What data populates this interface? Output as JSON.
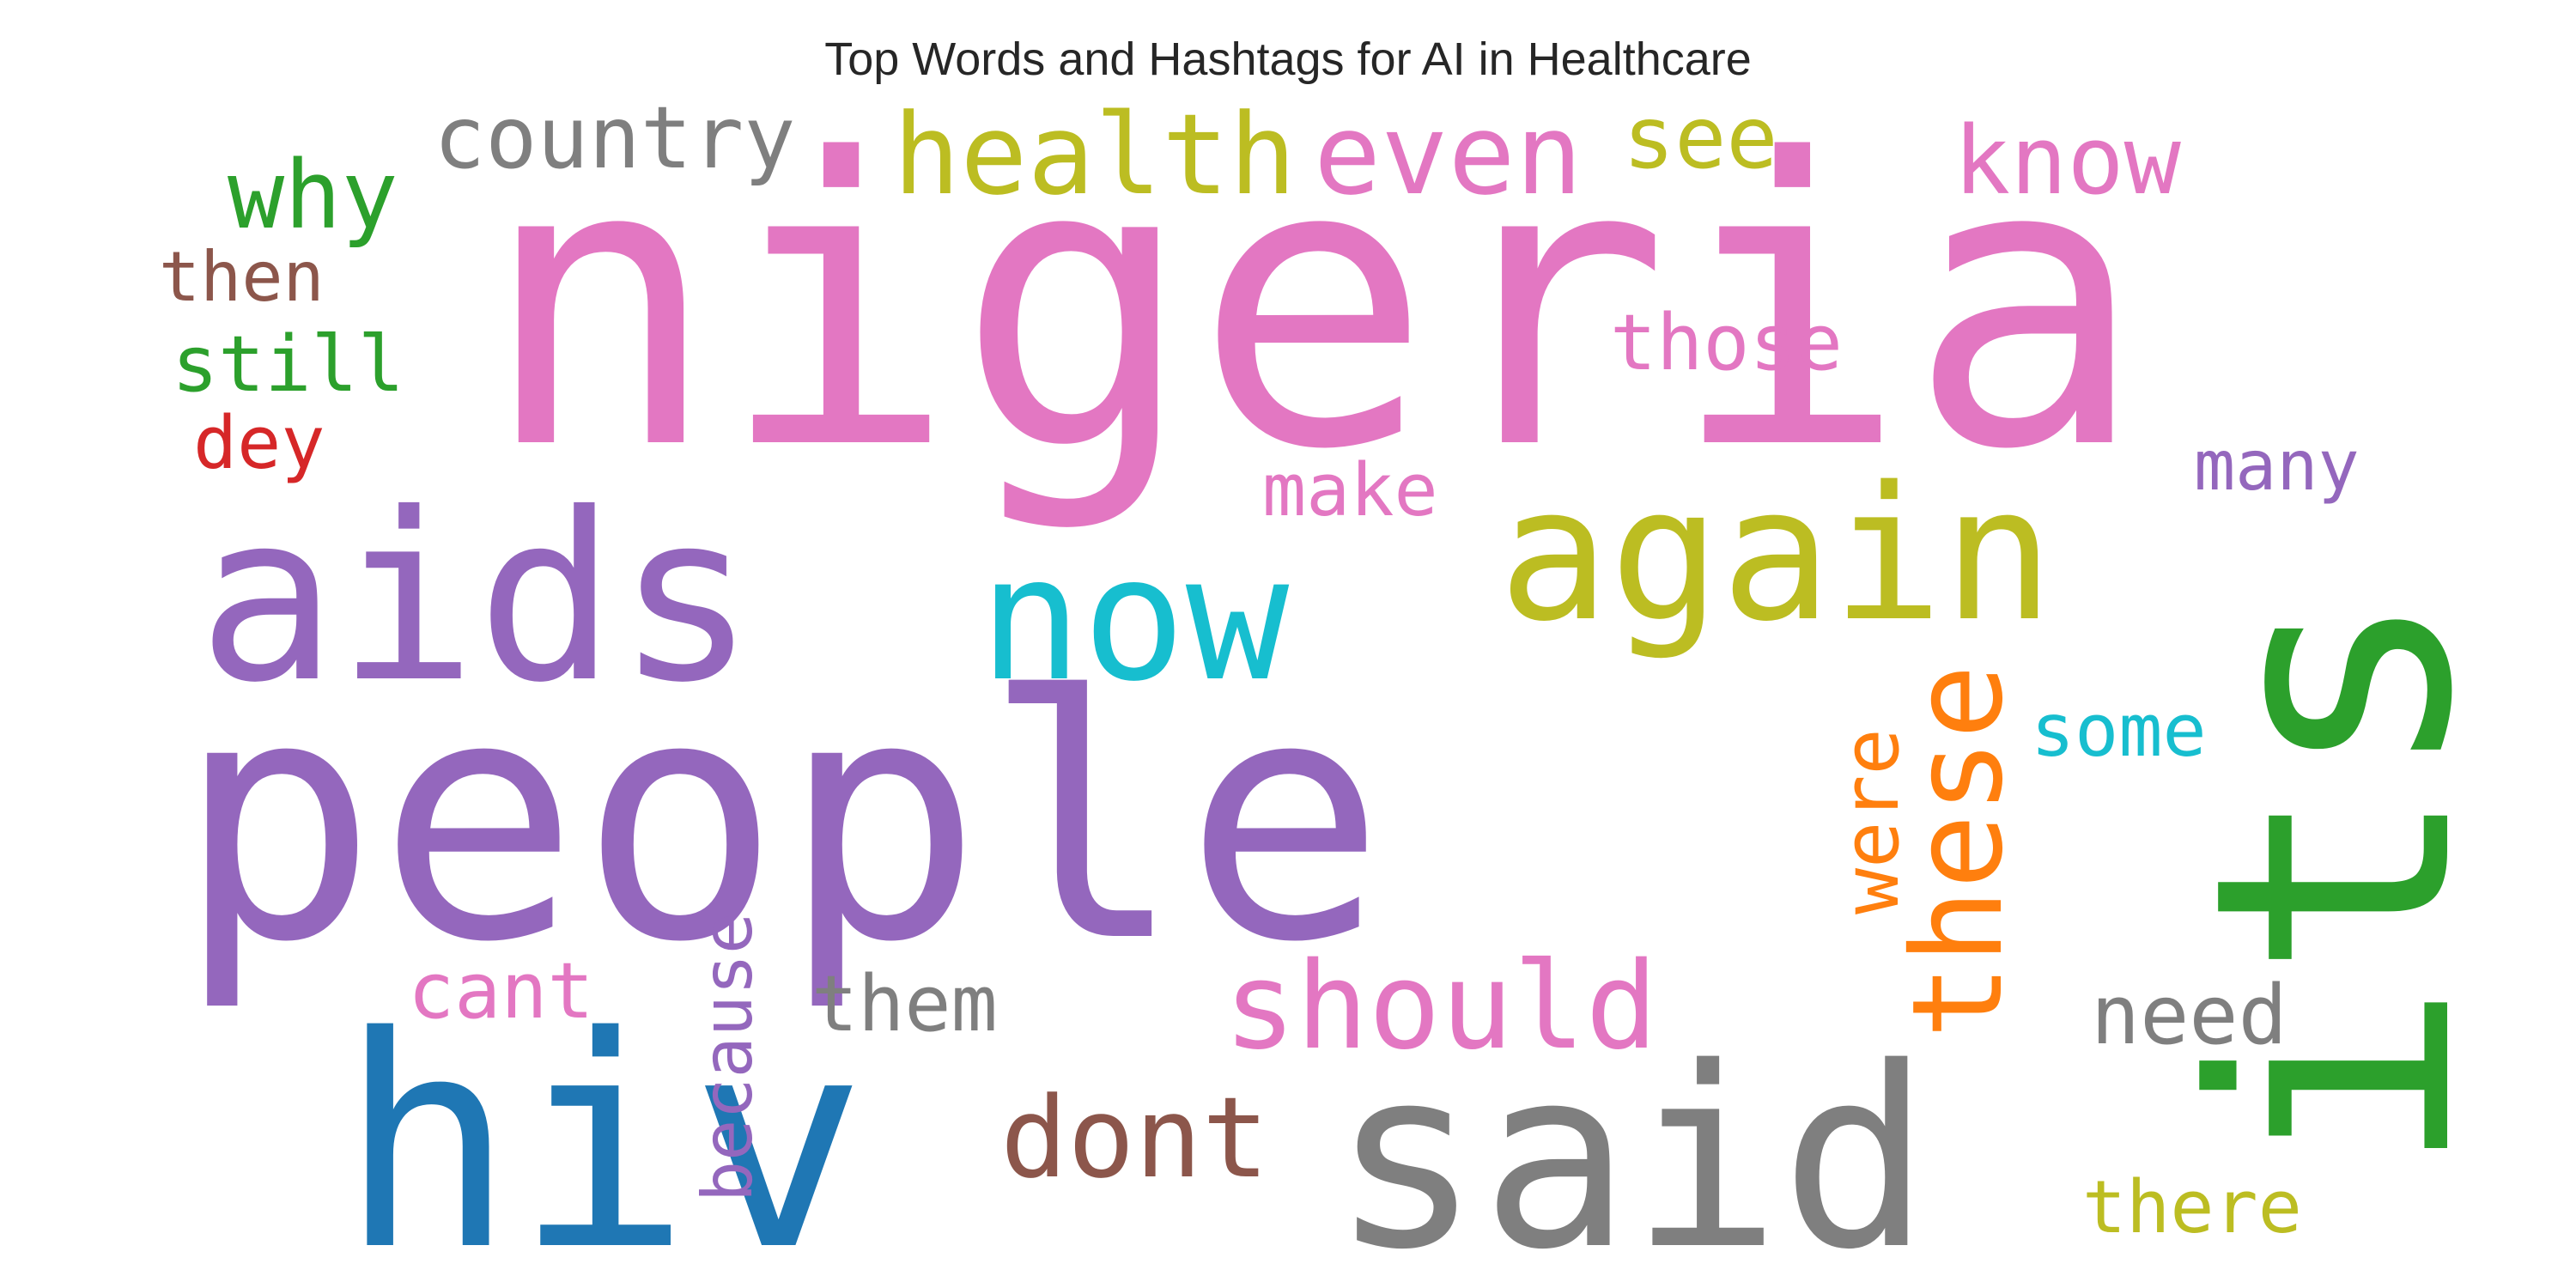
{
  "title": "Top Words and Hashtags for AI in Healthcare",
  "words": [
    {
      "text": "nigeria",
      "color": "#e377c2"
    },
    {
      "text": "people",
      "color": "#9467bd"
    },
    {
      "text": "aids",
      "color": "#9467bd"
    },
    {
      "text": "hiv",
      "color": "#1f77b4"
    },
    {
      "text": "said",
      "color": "#7f7f7f"
    },
    {
      "text": "its",
      "color": "#2ca02c"
    },
    {
      "text": "again",
      "color": "#bcbd22"
    },
    {
      "text": "now",
      "color": "#17becf"
    },
    {
      "text": "health",
      "color": "#bcbd22"
    },
    {
      "text": "even",
      "color": "#e377c2"
    },
    {
      "text": "country",
      "color": "#7f7f7f"
    },
    {
      "text": "see",
      "color": "#bcbd22"
    },
    {
      "text": "know",
      "color": "#e377c2"
    },
    {
      "text": "why",
      "color": "#2ca02c"
    },
    {
      "text": "then",
      "color": "#8c564b"
    },
    {
      "text": "still",
      "color": "#2ca02c"
    },
    {
      "text": "dey",
      "color": "#d62728"
    },
    {
      "text": "those",
      "color": "#e377c2"
    },
    {
      "text": "many",
      "color": "#9467bd"
    },
    {
      "text": "make",
      "color": "#e377c2"
    },
    {
      "text": "some",
      "color": "#17becf"
    },
    {
      "text": "these",
      "color": "#ff7f0e"
    },
    {
      "text": "were",
      "color": "#ff7f0e"
    },
    {
      "text": "should",
      "color": "#e377c2"
    },
    {
      "text": "cant",
      "color": "#e377c2"
    },
    {
      "text": "because",
      "color": "#9467bd"
    },
    {
      "text": "them",
      "color": "#7f7f7f"
    },
    {
      "text": "dont",
      "color": "#8c564b"
    },
    {
      "text": "need",
      "color": "#7f7f7f"
    },
    {
      "text": "there",
      "color": "#bcbd22"
    }
  ]
}
